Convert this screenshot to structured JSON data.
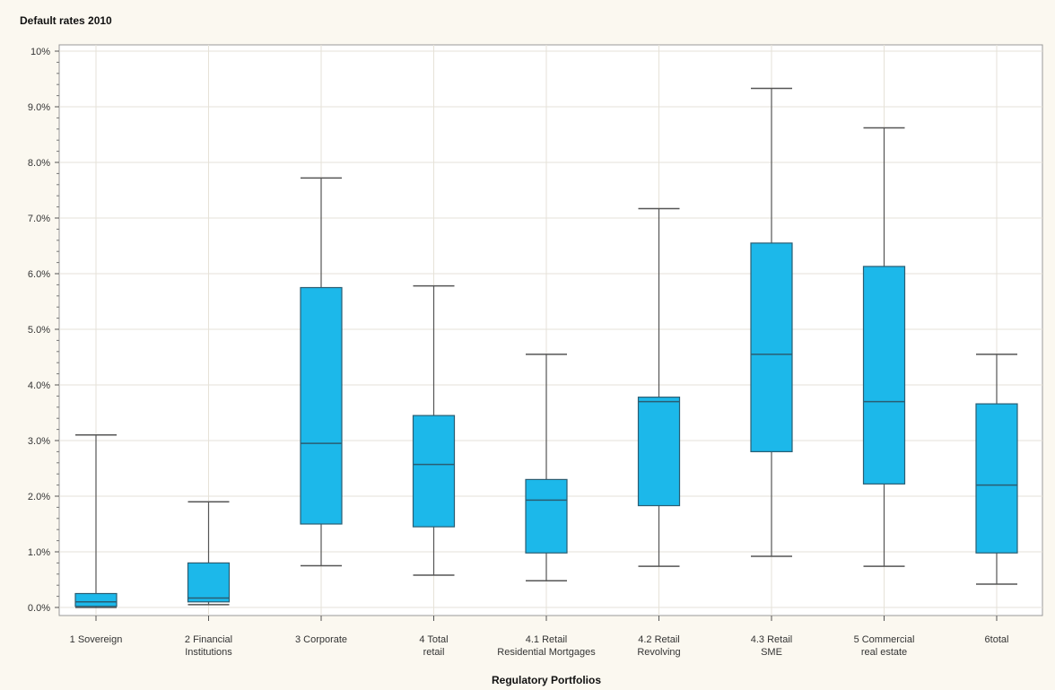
{
  "chart_data": {
    "type": "boxplot",
    "title": "Default rates 2010",
    "xlabel": "Regulatory Portfolios",
    "ylabel": "",
    "ylim": [
      0,
      10
    ],
    "yticks": [
      0,
      1,
      2,
      3,
      4,
      5,
      6,
      7,
      8,
      9,
      10
    ],
    "ytick_labels": [
      "0.0%",
      "1.0%",
      "2.0%",
      "3.0%",
      "4.0%",
      "5.0%",
      "6.0%",
      "7.0%",
      "8.0%",
      "9.0%",
      "10%"
    ],
    "grid": true,
    "categories": [
      [
        "1 Sovereign"
      ],
      [
        "2 Financial",
        "Institutions"
      ],
      [
        "3 Corporate"
      ],
      [
        "4 Total",
        "retail"
      ],
      [
        "4.1 Retail",
        "Residential Mortgages"
      ],
      [
        "4.2 Retail",
        "Revolving"
      ],
      [
        "4.3 Retail",
        "SME"
      ],
      [
        "5 Commercial",
        "real estate"
      ],
      [
        "6total"
      ]
    ],
    "boxes": [
      {
        "min": 0.0,
        "q1": 0.02,
        "median": 0.1,
        "q3": 0.25,
        "max": 3.1
      },
      {
        "min": 0.05,
        "q1": 0.1,
        "median": 0.17,
        "q3": 0.8,
        "max": 1.9
      },
      {
        "min": 0.75,
        "q1": 1.5,
        "median": 2.95,
        "q3": 5.75,
        "max": 7.72
      },
      {
        "min": 0.58,
        "q1": 1.45,
        "median": 2.57,
        "q3": 3.45,
        "max": 5.78
      },
      {
        "min": 0.48,
        "q1": 0.98,
        "median": 1.93,
        "q3": 2.3,
        "max": 4.55
      },
      {
        "min": 0.74,
        "q1": 1.83,
        "median": 3.7,
        "q3": 3.78,
        "max": 7.17
      },
      {
        "min": 0.92,
        "q1": 2.8,
        "median": 4.55,
        "q3": 6.55,
        "max": 9.33
      },
      {
        "min": 0.74,
        "q1": 2.22,
        "median": 3.7,
        "q3": 6.13,
        "max": 8.62
      },
      {
        "min": 0.42,
        "q1": 0.98,
        "median": 2.2,
        "q3": 3.66,
        "max": 4.55
      }
    ],
    "colors": {
      "box_fill": "#1cb8ea",
      "box_stroke": "#2a5d72",
      "whisker": "#555555",
      "grid": "#e6e2d8",
      "plot_bg": "#ffffff",
      "page_bg": "#fbf8f0"
    }
  }
}
